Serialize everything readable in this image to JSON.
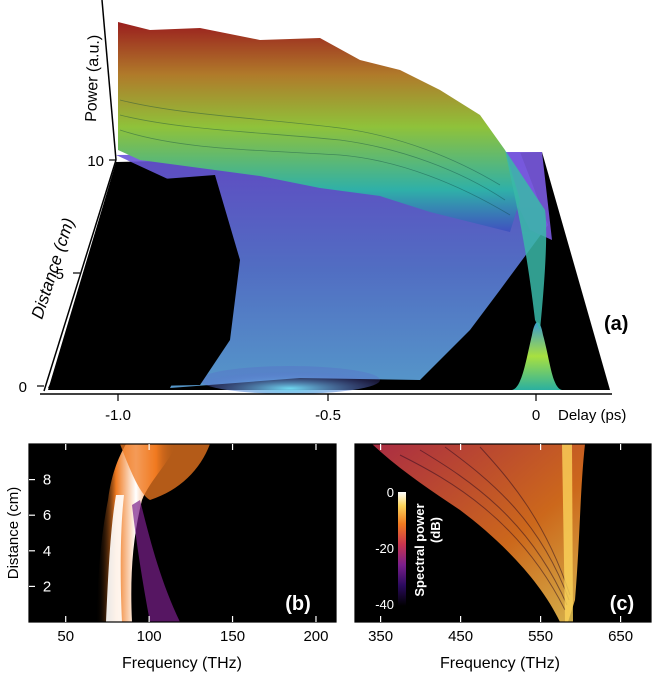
{
  "chart_data": [
    {
      "id": "a",
      "type": "surface",
      "panel_label": "(a)",
      "xlabel": "Delay (ps)",
      "ylabel": "Distance (cm)",
      "zlabel": "Power (a.u.)",
      "x_ticks": [
        "-1.0",
        "-0.5",
        "0"
      ],
      "x_tick_values": [
        -1.0,
        -0.5,
        0
      ],
      "y_ticks": [
        "0",
        "5",
        "10"
      ],
      "y_tick_values": [
        0,
        5,
        10
      ],
      "xlim": [
        -1.2,
        0.27
      ],
      "ylim": [
        0,
        10
      ],
      "input_pulse_delay_ps": 0,
      "dispersive_wave_delay_ps": -0.6
    },
    {
      "id": "b",
      "type": "heatmap",
      "panel_label": "(b)",
      "xlabel": "Frequency (THz)",
      "ylabel": "Distance (cm)",
      "x_ticks": [
        "50",
        "100",
        "150",
        "200"
      ],
      "x_tick_values": [
        50,
        100,
        150,
        200
      ],
      "y_ticks": [
        "2",
        "4",
        "6",
        "8"
      ],
      "y_tick_values": [
        2,
        4,
        6,
        8
      ],
      "xlim": [
        28,
        212
      ],
      "ylim": [
        0,
        10
      ],
      "pump_frequency_thz": 105
    },
    {
      "id": "c",
      "type": "heatmap",
      "panel_label": "(c)",
      "xlabel": "Frequency (THz)",
      "x_ticks": [
        "350",
        "450",
        "550",
        "650"
      ],
      "x_tick_values": [
        350,
        450,
        550,
        650
      ],
      "xlim": [
        318,
        688
      ],
      "ylim": [
        0,
        10
      ],
      "pump_frequency_thz": 570,
      "colorbar": {
        "label": "Spectral power\n(dB)",
        "label_line1": "Spectral power",
        "label_line2": "(dB)",
        "ticks": [
          "0",
          "-20",
          "-40"
        ],
        "tick_values": [
          0,
          -20,
          -40
        ],
        "range": [
          -40,
          0
        ],
        "colormap": [
          "#000000",
          "#2a0a5e",
          "#7a1f8c",
          "#c8344f",
          "#f07a20",
          "#fbd35a",
          "#ffffff"
        ]
      }
    }
  ],
  "colors": {
    "background": "#000000",
    "surface_low": "#5a3fc0",
    "surface_mid": "#3fc0d8",
    "surface_high": "#c8e040",
    "surface_peak": "#8a1010"
  }
}
